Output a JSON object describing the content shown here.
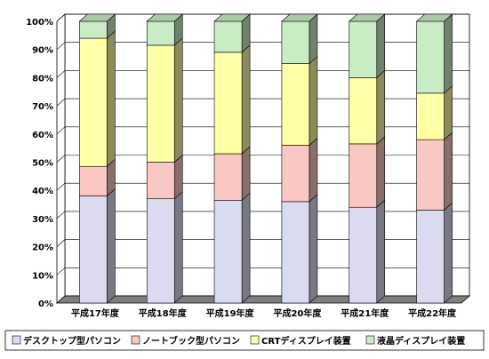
{
  "chart_data": {
    "type": "bar",
    "stacked": true,
    "percent": true,
    "three_d": true,
    "categories": [
      "平成17年度",
      "平成18年度",
      "平成19年度",
      "平成20年度",
      "平成21年度",
      "平成22年度"
    ],
    "series": [
      {
        "name": "デスクトップ型パソコン",
        "values": [
          38,
          37,
          36.5,
          36,
          34,
          33
        ],
        "color": "#d9dcf0"
      },
      {
        "name": "ノートブック型パソコン",
        "values": [
          10.5,
          13,
          16.5,
          20,
          22.5,
          25
        ],
        "color": "#f9c8c4"
      },
      {
        "name": "CRTディスプレイ装置",
        "values": [
          45.5,
          41.5,
          36,
          29,
          23.5,
          16.5
        ],
        "color": "#ffffa6"
      },
      {
        "name": "液晶ディスプレイ装置",
        "values": [
          6,
          8.5,
          11,
          15,
          20,
          25.5
        ],
        "color": "#c9ecc4"
      }
    ],
    "ylim": [
      0,
      100
    ],
    "yticks": [
      "0%",
      "10%",
      "20%",
      "30%",
      "40%",
      "50%",
      "60%",
      "70%",
      "80%",
      "90%",
      "100%"
    ],
    "grid": true,
    "legend_position": "bottom"
  }
}
